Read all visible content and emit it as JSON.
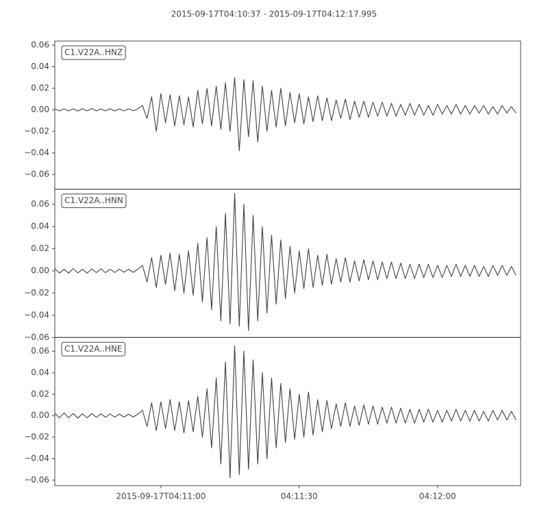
{
  "chart_data": {
    "type": "line",
    "title": "2015-09-17T04:10:37  -  2015-09-17T04:12:17.995",
    "xlim": [
      "2015-09-17T04:10:37",
      "2015-09-17T04:12:17.995"
    ],
    "xticks": [
      {
        "value": "2015-09-17T04:11:00",
        "label": "2015-09-17T04:11:00"
      },
      {
        "value": "2015-09-17T04:11:30",
        "label": "04:11:30"
      },
      {
        "value": "2015-09-17T04:12:00",
        "label": "04:12:00"
      }
    ],
    "x": [
      "2015-09-17T04:10:37",
      "2015-09-17T04:10:38",
      "2015-09-17T04:10:39",
      "2015-09-17T04:10:40",
      "2015-09-17T04:10:41",
      "2015-09-17T04:10:42",
      "2015-09-17T04:10:43",
      "2015-09-17T04:10:44",
      "2015-09-17T04:10:45",
      "2015-09-17T04:10:46",
      "2015-09-17T04:10:47",
      "2015-09-17T04:10:48",
      "2015-09-17T04:10:49",
      "2015-09-17T04:10:50",
      "2015-09-17T04:10:51",
      "2015-09-17T04:10:52",
      "2015-09-17T04:10:53",
      "2015-09-17T04:10:54",
      "2015-09-17T04:10:55",
      "2015-09-17T04:10:56",
      "2015-09-17T04:10:57",
      "2015-09-17T04:10:58",
      "2015-09-17T04:10:59",
      "2015-09-17T04:11:00",
      "2015-09-17T04:11:01",
      "2015-09-17T04:11:02",
      "2015-09-17T04:11:03",
      "2015-09-17T04:11:04",
      "2015-09-17T04:11:05",
      "2015-09-17T04:11:06",
      "2015-09-17T04:11:07",
      "2015-09-17T04:11:08",
      "2015-09-17T04:11:09",
      "2015-09-17T04:11:10",
      "2015-09-17T04:11:11",
      "2015-09-17T04:11:12",
      "2015-09-17T04:11:13",
      "2015-09-17T04:11:14",
      "2015-09-17T04:11:15",
      "2015-09-17T04:11:16",
      "2015-09-17T04:11:17",
      "2015-09-17T04:11:18",
      "2015-09-17T04:11:19",
      "2015-09-17T04:11:20",
      "2015-09-17T04:11:21",
      "2015-09-17T04:11:22",
      "2015-09-17T04:11:23",
      "2015-09-17T04:11:24",
      "2015-09-17T04:11:25",
      "2015-09-17T04:11:26",
      "2015-09-17T04:11:27",
      "2015-09-17T04:11:28",
      "2015-09-17T04:11:29",
      "2015-09-17T04:11:30",
      "2015-09-17T04:11:31",
      "2015-09-17T04:11:32",
      "2015-09-17T04:11:33",
      "2015-09-17T04:11:34",
      "2015-09-17T04:11:35",
      "2015-09-17T04:11:36",
      "2015-09-17T04:11:37",
      "2015-09-17T04:11:38",
      "2015-09-17T04:11:39",
      "2015-09-17T04:11:40",
      "2015-09-17T04:11:41",
      "2015-09-17T04:11:42",
      "2015-09-17T04:11:43",
      "2015-09-17T04:11:44",
      "2015-09-17T04:11:45",
      "2015-09-17T04:11:46",
      "2015-09-17T04:11:47",
      "2015-09-17T04:11:48",
      "2015-09-17T04:11:49",
      "2015-09-17T04:11:50",
      "2015-09-17T04:11:51",
      "2015-09-17T04:11:52",
      "2015-09-17T04:11:53",
      "2015-09-17T04:11:54",
      "2015-09-17T04:11:55",
      "2015-09-17T04:11:56",
      "2015-09-17T04:11:57",
      "2015-09-17T04:11:58",
      "2015-09-17T04:11:59",
      "2015-09-17T04:12:00",
      "2015-09-17T04:12:01",
      "2015-09-17T04:12:02",
      "2015-09-17T04:12:03",
      "2015-09-17T04:12:04",
      "2015-09-17T04:12:05",
      "2015-09-17T04:12:06",
      "2015-09-17T04:12:07",
      "2015-09-17T04:12:08",
      "2015-09-17T04:12:09",
      "2015-09-17T04:12:10",
      "2015-09-17T04:12:11",
      "2015-09-17T04:12:12",
      "2015-09-17T04:12:13",
      "2015-09-17T04:12:14",
      "2015-09-17T04:12:15",
      "2015-09-17T04:12:16",
      "2015-09-17T04:12:17"
    ],
    "panels": [
      {
        "name": "C1.V22A..HNZ",
        "color": "#404040",
        "ylim": [
          -0.0737,
          0.0638
        ],
        "yticks": [
          0.06,
          0.04,
          0.02,
          {
            "value": 0,
            "label": "0.00"
          },
          {
            "value": -0.02,
            "label": "−0.02"
          },
          {
            "value": -0.04,
            "label": "−0.04"
          },
          {
            "value": -0.06,
            "label": "−0.06"
          }
        ],
        "values": [
          0.001,
          -0.001,
          0.0008,
          -0.001,
          0.001,
          -0.0012,
          0.001,
          -0.0009,
          0.0011,
          -0.001,
          0.0009,
          -0.001,
          0.001,
          -0.0011,
          0.0008,
          -0.001,
          0.001,
          -0.0009,
          0.001,
          0.004,
          -0.008,
          0.012,
          -0.02,
          0.015,
          -0.012,
          0.014,
          -0.015,
          0.013,
          -0.014,
          0.012,
          -0.016,
          0.018,
          -0.013,
          0.02,
          -0.015,
          0.022,
          -0.018,
          0.025,
          -0.02,
          0.03,
          -0.038,
          0.028,
          -0.025,
          0.027,
          -0.03,
          0.022,
          -0.02,
          0.018,
          -0.016,
          0.02,
          -0.015,
          0.016,
          -0.012,
          0.015,
          -0.013,
          0.012,
          -0.011,
          0.013,
          -0.01,
          0.011,
          -0.01,
          0.009,
          -0.008,
          0.01,
          -0.009,
          0.008,
          -0.007,
          0.008,
          -0.007,
          0.007,
          -0.006,
          0.007,
          -0.006,
          0.006,
          -0.006,
          0.005,
          -0.005,
          0.006,
          -0.005,
          0.005,
          -0.005,
          0.004,
          -0.005,
          0.005,
          -0.004,
          0.004,
          -0.004,
          0.005,
          -0.004,
          0.004,
          -0.004,
          0.004,
          -0.003,
          0.004,
          -0.004,
          0.003,
          -0.004,
          0.004,
          -0.003,
          0.003,
          -0.003
        ]
      },
      {
        "name": "C1.V22A..HNN",
        "color": "#404040",
        "ylim": [
          -0.06,
          0.0736
        ],
        "yticks": [
          0.06,
          0.04,
          0.02,
          {
            "value": 0,
            "label": "0.00"
          },
          {
            "value": -0.02,
            "label": "−0.02"
          },
          {
            "value": -0.04,
            "label": "−0.04"
          },
          {
            "value": -0.06,
            "label": "−0.06"
          }
        ],
        "values": [
          0.002,
          -0.002,
          0.0015,
          -0.002,
          0.002,
          -0.0018,
          0.0015,
          -0.002,
          0.0017,
          -0.0015,
          0.0018,
          -0.0016,
          0.0015,
          -0.0014,
          0.0015,
          -0.0012,
          0.0014,
          -0.0013,
          0.0015,
          0.005,
          -0.01,
          0.012,
          -0.015,
          0.014,
          -0.012,
          0.016,
          -0.018,
          0.015,
          -0.02,
          0.018,
          -0.022,
          0.025,
          -0.028,
          0.03,
          -0.035,
          0.04,
          -0.045,
          0.052,
          -0.048,
          0.07,
          -0.05,
          0.06,
          -0.054,
          0.05,
          -0.045,
          0.04,
          -0.038,
          0.032,
          -0.03,
          0.028,
          -0.025,
          0.022,
          -0.02,
          0.018,
          -0.016,
          0.02,
          -0.015,
          0.014,
          -0.013,
          0.015,
          -0.012,
          0.011,
          -0.01,
          0.012,
          -0.01,
          0.009,
          -0.009,
          0.01,
          -0.008,
          0.009,
          -0.008,
          0.008,
          -0.007,
          0.008,
          -0.007,
          0.007,
          -0.007,
          0.006,
          -0.007,
          0.006,
          -0.006,
          0.006,
          -0.006,
          0.005,
          -0.006,
          0.005,
          -0.005,
          0.006,
          -0.005,
          0.005,
          -0.005,
          0.005,
          -0.005,
          0.004,
          -0.005,
          0.005,
          -0.004,
          0.005,
          -0.004,
          0.004,
          -0.004
        ]
      },
      {
        "name": "C1.V22A..HNE",
        "color": "#404040",
        "ylim": [
          -0.0651,
          0.0728
        ],
        "yticks": [
          0.06,
          0.04,
          0.02,
          {
            "value": 0,
            "label": "0.00"
          },
          {
            "value": -0.02,
            "label": "−0.02"
          },
          {
            "value": -0.04,
            "label": "−0.04"
          },
          {
            "value": -0.06,
            "label": "−0.06"
          }
        ],
        "values": [
          0.002,
          -0.002,
          0.0025,
          -0.002,
          0.002,
          -0.0022,
          0.0018,
          -0.002,
          0.002,
          -0.0016,
          0.0018,
          -0.0015,
          0.0016,
          -0.0014,
          0.0015,
          -0.0013,
          0.0014,
          -0.0012,
          0.0014,
          0.005,
          -0.01,
          0.012,
          -0.014,
          0.013,
          -0.012,
          0.015,
          -0.014,
          0.013,
          -0.016,
          0.014,
          -0.015,
          0.018,
          -0.02,
          0.025,
          -0.03,
          0.035,
          -0.045,
          0.05,
          -0.058,
          0.065,
          -0.055,
          0.06,
          -0.05,
          0.052,
          -0.045,
          0.04,
          -0.04,
          0.035,
          -0.03,
          0.03,
          -0.025,
          0.025,
          -0.022,
          0.02,
          -0.02,
          0.022,
          -0.018,
          0.015,
          -0.015,
          0.014,
          -0.012,
          0.011,
          -0.01,
          0.012,
          -0.01,
          0.009,
          -0.009,
          0.01,
          -0.008,
          0.009,
          -0.008,
          0.008,
          -0.007,
          0.008,
          -0.007,
          0.007,
          -0.007,
          0.006,
          -0.007,
          0.006,
          -0.006,
          0.006,
          -0.006,
          0.005,
          -0.006,
          0.005,
          -0.005,
          0.006,
          -0.005,
          0.005,
          -0.005,
          0.005,
          -0.005,
          0.004,
          -0.005,
          0.005,
          -0.004,
          0.005,
          -0.004,
          0.004,
          -0.004
        ]
      }
    ]
  }
}
